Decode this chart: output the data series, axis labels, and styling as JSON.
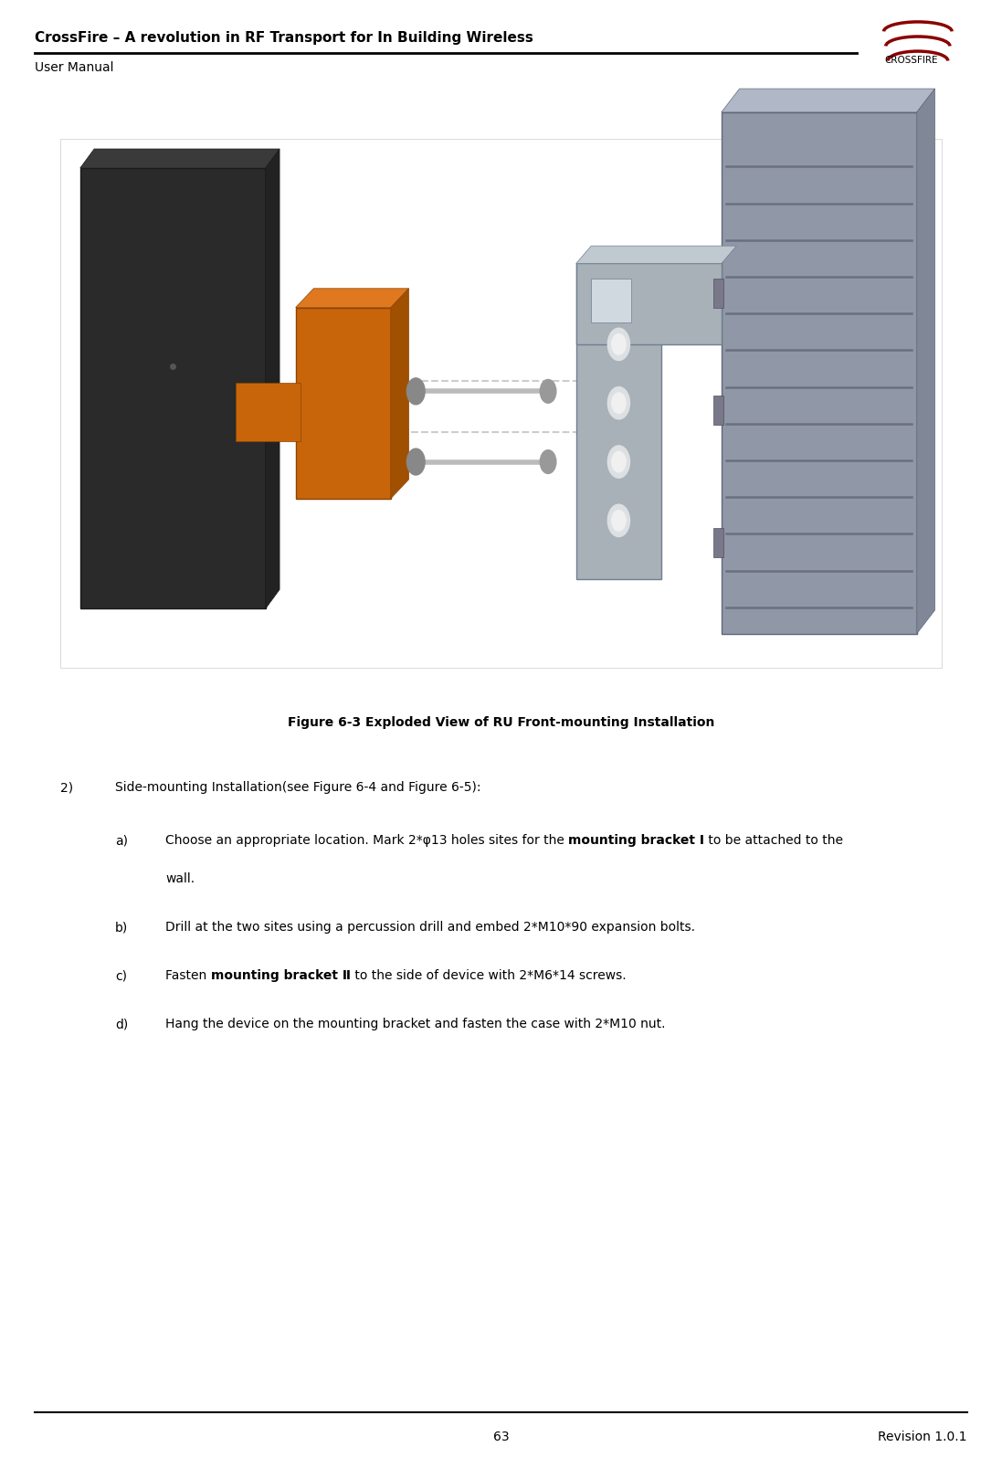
{
  "page_title": "CrossFire – A revolution in RF Transport for In Building Wireless",
  "page_subtitle": "User Manual",
  "page_number": "63",
  "revision": "Revision 1.0.1",
  "figure_caption": "Figure 6-3 Exploded View of RU Front-mounting Installation",
  "body_intro_prefix": "2)",
  "body_intro_text": "Side-mounting Installation(see Figure 6-4 and Figure 6-5):",
  "body_a_prefix": "a)",
  "body_a_pre": "Choose an appropriate location. Mark 2*φ13 holes sites for the ",
  "body_a_bold": "mounting bracket Ⅰ",
  "body_a_post": " to be attached to the",
  "body_a_cont": "wall.",
  "body_b_prefix": "b)",
  "body_b_text": "Drill at the two sites using a percussion drill and embed 2*M10*90 expansion bolts.",
  "body_c_prefix": "c)",
  "body_c_pre": "Fasten ",
  "body_c_bold": "mounting bracket Ⅱ",
  "body_c_post": " to the side of device with 2*M6*14 screws.",
  "body_d_prefix": "d)",
  "body_d_text": "Hang the device on the mounting bracket and fasten the case with 2*M10 nut.",
  "header_line_color": "#000000",
  "footer_line_color": "#000000",
  "background_color": "#ffffff",
  "text_color": "#000000",
  "title_fontsize": 11,
  "subtitle_fontsize": 10,
  "body_fontsize": 10,
  "caption_fontsize": 10,
  "page_num_fontsize": 10,
  "logo_color": "#8b0000",
  "logo_text": "CROSSFIRE"
}
